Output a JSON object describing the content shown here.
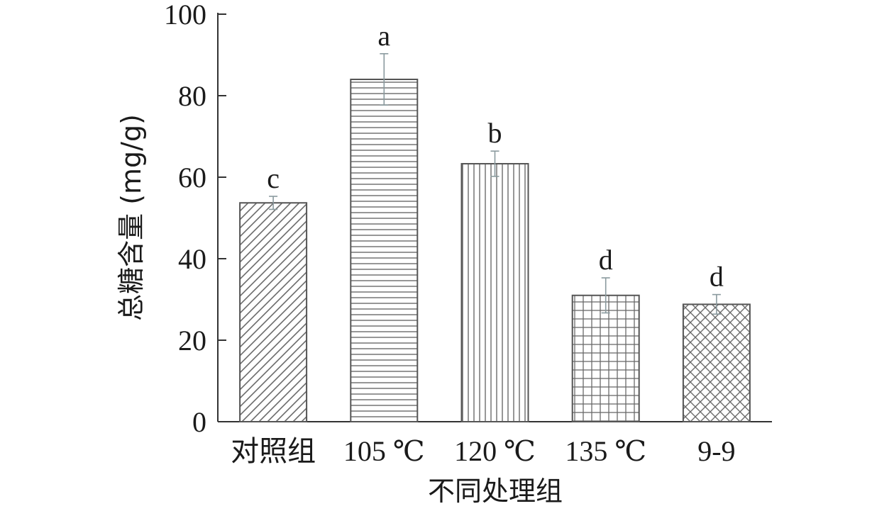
{
  "chart_data": {
    "type": "bar",
    "title": "",
    "xlabel": "不同处理组",
    "ylabel": "总糖含量 (mg/g)",
    "ylim": [
      0,
      100
    ],
    "yticks": [
      "0",
      "20",
      "40",
      "60",
      "80",
      "100"
    ],
    "categories": [
      "对照组",
      "105 ℃",
      "120 ℃",
      "135 ℃",
      "9-9"
    ],
    "values": [
      53.7,
      84.0,
      63.3,
      31.0,
      28.8
    ],
    "errors": [
      1.6,
      6.3,
      3.1,
      4.3,
      2.4
    ],
    "significance": [
      "c",
      "a",
      "b",
      "d",
      "d"
    ],
    "patterns": [
      "diagonal-lines",
      "horizontal-lines",
      "vertical-lines",
      "grid",
      "crosshatch"
    ],
    "colors": {
      "bar_stroke": "#555555",
      "pattern_stroke": "#6a6a6a",
      "error_bar": "#8a9a9e",
      "axis": "#333333"
    },
    "grid": false,
    "legend": "none"
  }
}
